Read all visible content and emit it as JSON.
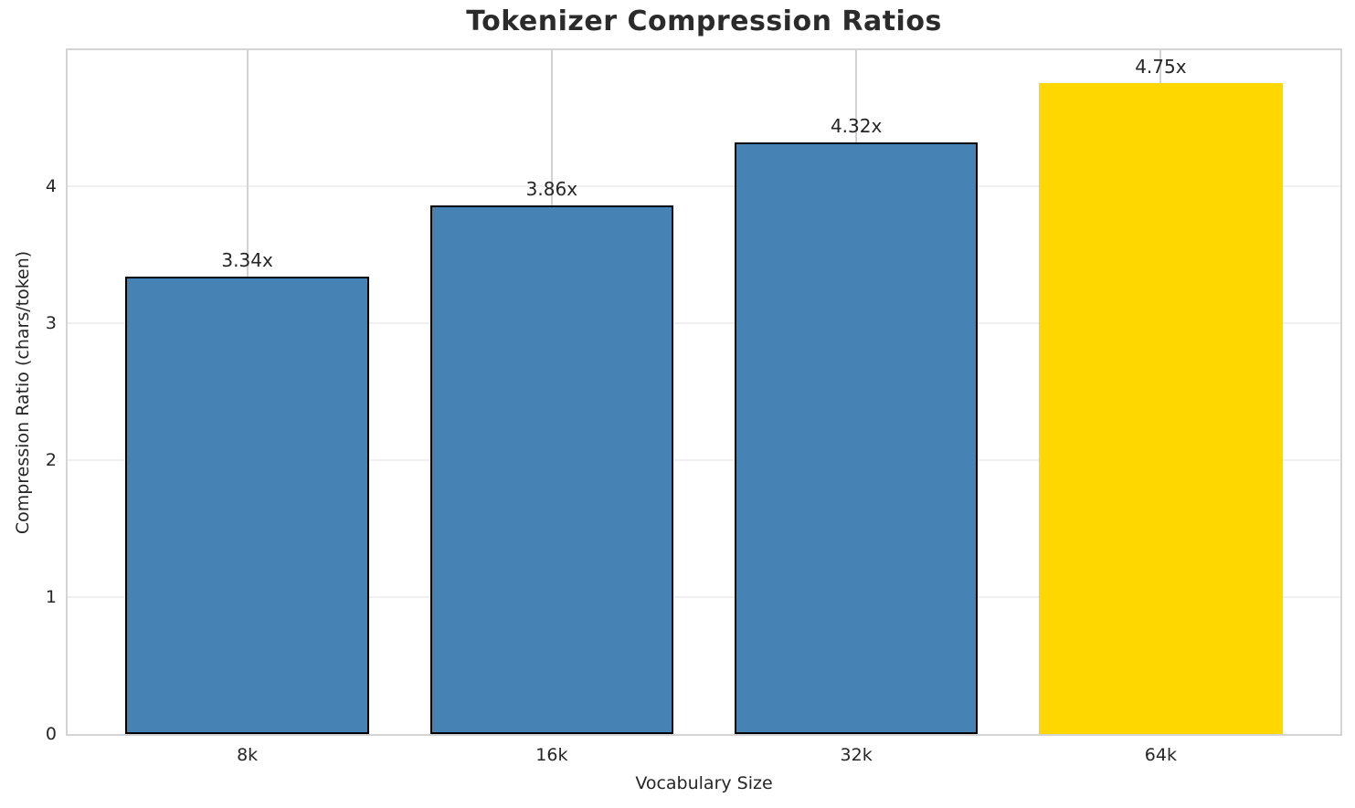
{
  "chart_data": {
    "type": "bar",
    "title": "Tokenizer Compression Ratios",
    "xlabel": "Vocabulary Size",
    "ylabel": "Compression Ratio (chars/token)",
    "categories": [
      "8k",
      "16k",
      "32k",
      "64k"
    ],
    "values": [
      3.34,
      3.86,
      4.32,
      4.75
    ],
    "bar_labels": [
      "3.34x",
      "3.86x",
      "4.32x",
      "4.75x"
    ],
    "bar_colors": [
      "#4682B4",
      "#4682B4",
      "#4682B4",
      "#FFD700"
    ],
    "bar_edge_colors": [
      "#000000",
      "#000000",
      "#000000",
      "none"
    ],
    "yticks": [
      0,
      1,
      2,
      3,
      4
    ],
    "ylim": [
      0,
      4.99
    ],
    "xlim": [
      -0.59,
      3.59
    ],
    "bar_width_units": 0.8,
    "grid": "both",
    "legend": "none",
    "colors": {
      "bar_default": "#4682B4",
      "bar_highlight": "#FFD700",
      "bar_edge": "#000000",
      "spine": "#d4d4d4",
      "grid_vertical": "#d2d2d2",
      "grid_horizontal": "#f0f0f0",
      "text": "#262626",
      "title_text": "#2b2b2b",
      "background": "#ffffff"
    }
  }
}
